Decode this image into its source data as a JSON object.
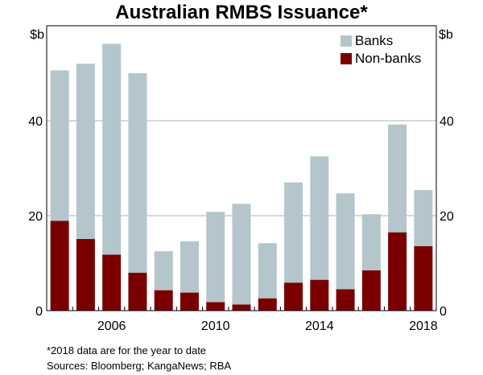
{
  "chart_data": {
    "type": "bar",
    "stacked": true,
    "title": "Australian RMBS Issuance*",
    "ylabel_left": "$b",
    "ylabel_right": "$b",
    "ylim": [
      0,
      60
    ],
    "yticks": [
      0,
      20,
      40
    ],
    "x": [
      2004,
      2005,
      2006,
      2007,
      2008,
      2009,
      2010,
      2011,
      2012,
      2013,
      2014,
      2015,
      2016,
      2017,
      2018
    ],
    "xtick_labels": [
      "2006",
      "2010",
      "2014",
      "2018"
    ],
    "xtick_values": [
      2006,
      2010,
      2014,
      2018
    ],
    "series": [
      {
        "name": "Non-banks",
        "color": "#7a0000",
        "values": [
          18.9,
          15.1,
          11.8,
          8.0,
          4.3,
          3.8,
          1.8,
          1.3,
          2.6,
          5.9,
          6.5,
          4.5,
          8.5,
          16.5,
          13.6
        ]
      },
      {
        "name": "Banks",
        "color": "#b4c6cc",
        "values": [
          31.7,
          36.9,
          44.4,
          42.0,
          8.2,
          10.8,
          19.0,
          21.2,
          11.6,
          21.1,
          26.0,
          20.2,
          11.8,
          22.7,
          11.8
        ]
      }
    ],
    "grid": true,
    "legend_position": "top-right"
  },
  "footnotes": {
    "marker": "*",
    "note": "2018 data are for the year to date",
    "sources": "Sources:   Bloomberg; KangaNews; RBA"
  },
  "colors": {
    "axis": "#000000",
    "grid": "#b0b0b0"
  }
}
